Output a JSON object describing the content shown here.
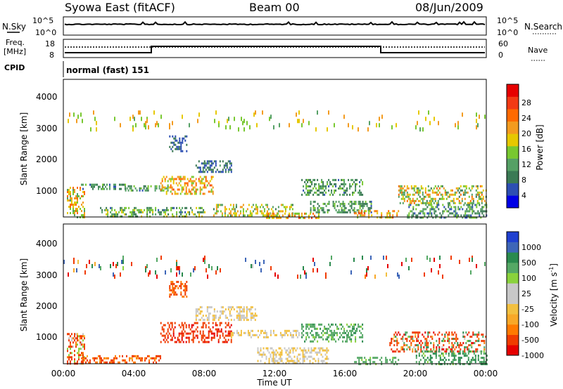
{
  "header": {
    "station": "Syowa East (fitACF)",
    "beam": "Beam 00",
    "date": "08/Jun/2009"
  },
  "top_panel": {
    "left_label": "N.Sky",
    "right_label": "N.Search",
    "left_ticks": [
      "10^5",
      "10^0"
    ],
    "right_ticks": [
      "10^5",
      "10^0"
    ]
  },
  "freq_panel": {
    "left_label_line1": "Freq.",
    "left_label_line2": "[MHz]",
    "right_label": "Nave",
    "left_ticks": [
      "18",
      "8"
    ],
    "right_ticks": [
      "60",
      "0"
    ],
    "cpid_label": "CPID",
    "mode_text": "normal (fast) 151"
  },
  "colors": {
    "power_scale": [
      "#0000e6",
      "#2d4fb3",
      "#3b7a55",
      "#55a065",
      "#78c830",
      "#e6c800",
      "#f39b1f",
      "#ff6a00",
      "#f23a14",
      "#e60000"
    ],
    "velocity_scale": [
      "#e60000",
      "#f03c00",
      "#ff7a00",
      "#f8a828",
      "#f2c040",
      "#c8c8c8",
      "#c8c8c8",
      "#8ad23c",
      "#55a865",
      "#2a8a4e",
      "#3e66b8",
      "#2040d0"
    ]
  },
  "chart_data": [
    {
      "type": "heatmap",
      "name": "power",
      "ylabel": "Slant Range [km]",
      "yticks": [
        "1000",
        "2000",
        "3000",
        "4000"
      ],
      "ylim": [
        180,
        4600
      ],
      "xlim": [
        0,
        24
      ],
      "colorbar_label": "Power [dB]",
      "colorbar_ticks": [
        "4",
        "8",
        "12",
        "16",
        "20",
        "24",
        "28"
      ],
      "colorbar_range": [
        0,
        32
      ],
      "regions": [
        {
          "t": [
            0.2,
            1.2
          ],
          "r": [
            180,
            1150
          ],
          "v": [
            10,
            24
          ]
        },
        {
          "t": [
            1.0,
            3.5
          ],
          "r": [
            1050,
            1250
          ],
          "v": [
            6,
            14
          ]
        },
        {
          "t": [
            3.5,
            6.0
          ],
          "r": [
            1000,
            1200
          ],
          "v": [
            6,
            16
          ]
        },
        {
          "t": [
            5.5,
            8.5
          ],
          "r": [
            900,
            1500
          ],
          "v": [
            14,
            26
          ]
        },
        {
          "t": [
            7.5,
            9.5
          ],
          "r": [
            1600,
            2000
          ],
          "v": [
            4,
            10
          ]
        },
        {
          "t": [
            6.0,
            7.0
          ],
          "r": [
            2300,
            2800
          ],
          "v": [
            4,
            8
          ]
        },
        {
          "t": [
            2.0,
            8.0
          ],
          "r": [
            180,
            500
          ],
          "v": [
            6,
            18
          ]
        },
        {
          "t": [
            8.5,
            13.0
          ],
          "r": [
            200,
            600
          ],
          "v": [
            8,
            22
          ]
        },
        {
          "t": [
            11.5,
            14.5
          ],
          "r": [
            180,
            320
          ],
          "v": [
            12,
            26
          ]
        },
        {
          "t": [
            13.5,
            17.0
          ],
          "r": [
            900,
            1400
          ],
          "v": [
            6,
            14
          ]
        },
        {
          "t": [
            14.0,
            17.5
          ],
          "r": [
            300,
            700
          ],
          "v": [
            6,
            14
          ]
        },
        {
          "t": [
            16.5,
            19.0
          ],
          "r": [
            180,
            400
          ],
          "v": [
            14,
            26
          ]
        },
        {
          "t": [
            19.0,
            24.0
          ],
          "r": [
            600,
            1200
          ],
          "v": [
            8,
            24
          ]
        },
        {
          "t": [
            19.5,
            24.0
          ],
          "r": [
            180,
            600
          ],
          "v": [
            4,
            16
          ]
        },
        {
          "t": [
            0.0,
            24.0
          ],
          "r": [
            3000,
            3600
          ],
          "v": [
            12,
            22
          ]
        }
      ]
    },
    {
      "type": "heatmap",
      "name": "velocity",
      "ylabel": "Slant Range [km]",
      "yticks": [
        "1000",
        "2000",
        "3000",
        "4000"
      ],
      "ylim": [
        180,
        4600
      ],
      "xlim": [
        0,
        24
      ],
      "xlabel": "Time UT",
      "xticks": [
        "00:00",
        "04:00",
        "08:00",
        "12:00",
        "16:00",
        "20:00",
        "00:00"
      ],
      "colorbar_label": "Velocity [m s^-1]",
      "colorbar_ticks": [
        "1000",
        "500",
        "100",
        "25",
        "-25",
        "-100",
        "-500",
        "-1000"
      ],
      "colorbar_range": [
        -1000,
        1000
      ],
      "regions": [
        {
          "t": [
            0.2,
            1.2
          ],
          "r": [
            180,
            1150
          ],
          "v": [
            -300,
            100
          ]
        },
        {
          "t": [
            1.0,
            5.5
          ],
          "r": [
            200,
            450
          ],
          "v": [
            -150,
            -40
          ]
        },
        {
          "t": [
            5.5,
            9.5
          ],
          "r": [
            900,
            1500
          ],
          "v": [
            -600,
            -200
          ]
        },
        {
          "t": [
            7.5,
            11.0
          ],
          "r": [
            1600,
            2000
          ],
          "v": [
            -20,
            20
          ]
        },
        {
          "t": [
            6.0,
            7.0
          ],
          "r": [
            2300,
            2800
          ],
          "v": [
            -150,
            -60
          ]
        },
        {
          "t": [
            9.5,
            13.5
          ],
          "r": [
            1000,
            1250
          ],
          "v": [
            -20,
            20
          ]
        },
        {
          "t": [
            11.0,
            15.0
          ],
          "r": [
            200,
            700
          ],
          "v": [
            -20,
            20
          ]
        },
        {
          "t": [
            13.5,
            17.0
          ],
          "r": [
            900,
            1450
          ],
          "v": [
            60,
            300
          ]
        },
        {
          "t": [
            16.5,
            19.0
          ],
          "r": [
            200,
            400
          ],
          "v": [
            80,
            200
          ]
        },
        {
          "t": [
            18.5,
            24.0
          ],
          "r": [
            600,
            1200
          ],
          "v": [
            -600,
            300
          ]
        },
        {
          "t": [
            20.0,
            24.0
          ],
          "r": [
            200,
            600
          ],
          "v": [
            80,
            400
          ]
        },
        {
          "t": [
            0.0,
            24.0
          ],
          "r": [
            3000,
            3600
          ],
          "v": [
            -800,
            800
          ]
        }
      ]
    }
  ],
  "xaxis": {
    "title": "Time UT",
    "ticks": [
      "00:00",
      "04:00",
      "08:00",
      "12:00",
      "16:00",
      "20:00",
      "00:00"
    ]
  },
  "power_panel": {
    "ylabel": "Slant Range [km]",
    "yticks": [
      "1000",
      "2000",
      "3000",
      "4000"
    ],
    "colorbar_label": "Power [dB]",
    "colorbar_ticks": [
      "4",
      "8",
      "12",
      "16",
      "20",
      "24",
      "28"
    ]
  },
  "velocity_panel": {
    "ylabel": "Slant Range [km]",
    "yticks": [
      "1000",
      "2000",
      "3000",
      "4000"
    ],
    "colorbar_label_main": "Velocity  [m s",
    "colorbar_label_sup": "-1",
    "colorbar_label_end": "]",
    "colorbar_ticks": [
      "1000",
      "500",
      "100",
      "25",
      "-25",
      "-100",
      "-500",
      "-1000"
    ]
  }
}
